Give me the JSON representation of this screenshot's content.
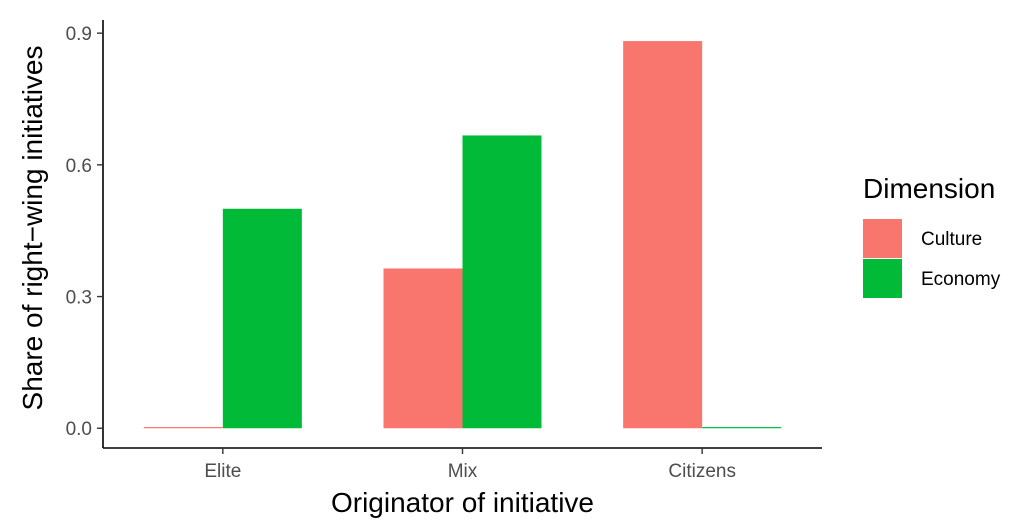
{
  "chart_data": {
    "type": "bar",
    "categories": [
      "Elite",
      "Mix",
      "Citizens"
    ],
    "series": [
      {
        "name": "Culture",
        "color": "#F8766D",
        "values": [
          0.0,
          0.364,
          0.882
        ]
      },
      {
        "name": "Economy",
        "color": "#00BA38",
        "values": [
          0.5,
          0.667,
          0.0
        ]
      }
    ],
    "title": "",
    "xlabel": "Originator of initiative",
    "ylabel": "Share of right−wing initiatives",
    "ylim": [
      -0.045,
      0.93
    ],
    "yticks": [
      0.0,
      0.3,
      0.6,
      0.9
    ],
    "ytick_labels": [
      "0.0",
      "0.3",
      "0.6",
      "0.9"
    ],
    "grid": false,
    "legend": {
      "title": "Dimension",
      "position": "right"
    }
  }
}
